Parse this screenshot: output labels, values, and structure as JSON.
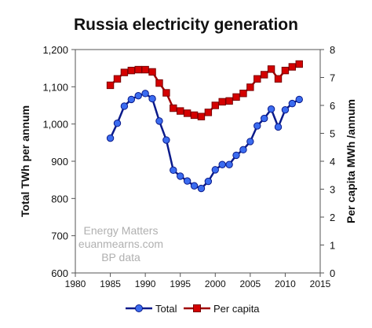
{
  "chart_data": {
    "type": "line",
    "title": "Russia electricity generation",
    "xlabel": "",
    "ylabel": "Total TWh per annum",
    "y2label": "Per capita MWh /annum",
    "xlim": [
      1980,
      2015
    ],
    "ylim": [
      600,
      1200
    ],
    "y2lim": [
      0,
      8
    ],
    "x_ticks": [
      "1980",
      "1985",
      "1990",
      "1995",
      "2000",
      "2005",
      "2010",
      "2015"
    ],
    "y_ticks": [
      "600",
      "700",
      "800",
      "900",
      "1,000",
      "1,100",
      "1,200"
    ],
    "y2_ticks": [
      "0",
      "1",
      "2",
      "3",
      "4",
      "5",
      "6",
      "7",
      "8"
    ],
    "grid": false,
    "legend_position": "bottom",
    "watermark": [
      "Energy Matters",
      "euanmearns.com",
      "BP data"
    ],
    "x": [
      1985,
      1986,
      1987,
      1988,
      1989,
      1990,
      1991,
      1992,
      1993,
      1994,
      1995,
      1996,
      1997,
      1998,
      1999,
      2000,
      2001,
      2002,
      2003,
      2004,
      2005,
      2006,
      2007,
      2008,
      2009,
      2010,
      2011,
      2012
    ],
    "series": [
      {
        "name": "Total",
        "axis": "left",
        "color": "#1f4fd8",
        "marker": "circle",
        "values": [
          962,
          1002,
          1048,
          1066,
          1076,
          1082,
          1068,
          1008,
          957,
          876,
          860,
          847,
          834,
          827,
          846,
          877,
          891,
          891,
          916,
          931,
          953,
          995,
          1015,
          1040,
          992,
          1038,
          1055,
          1066
        ]
      },
      {
        "name": "Per capita",
        "axis": "right",
        "color": "#d40000",
        "marker": "square",
        "values": [
          6.72,
          6.95,
          7.18,
          7.25,
          7.28,
          7.28,
          7.2,
          6.8,
          6.45,
          5.9,
          5.8,
          5.72,
          5.65,
          5.6,
          5.75,
          6.0,
          6.13,
          6.16,
          6.3,
          6.43,
          6.65,
          6.95,
          7.1,
          7.3,
          6.95,
          7.25,
          7.38,
          7.48
        ]
      }
    ]
  }
}
